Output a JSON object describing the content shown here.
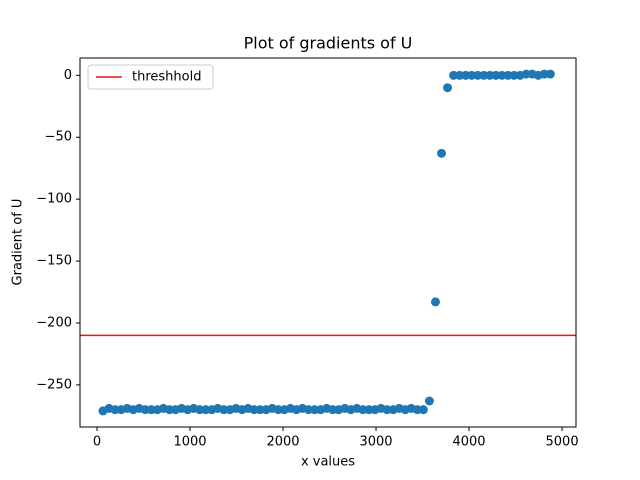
{
  "chart_data": {
    "type": "scatter",
    "title": "Plot of gradients of U",
    "x_label": "x values",
    "y_label": "Gradient of U",
    "x": [
      64,
      129,
      194,
      259,
      324,
      389,
      454,
      519,
      584,
      649,
      714,
      779,
      844,
      909,
      974,
      1039,
      1104,
      1169,
      1234,
      1299,
      1364,
      1429,
      1494,
      1559,
      1624,
      1689,
      1754,
      1819,
      1884,
      1949,
      2014,
      2079,
      2144,
      2209,
      2274,
      2339,
      2404,
      2469,
      2534,
      2599,
      2664,
      2729,
      2794,
      2859,
      2924,
      2989,
      3054,
      3119,
      3184,
      3249,
      3314,
      3379,
      3444,
      3509,
      3574,
      3639,
      3704,
      3769,
      3834,
      3899,
      3964,
      4029,
      4094,
      4159,
      4224,
      4289,
      4354,
      4419,
      4484,
      4549,
      4614,
      4679,
      4744,
      4809,
      4874
    ],
    "series": [
      {
        "color": "#1f77b4",
        "values": [
          -271,
          -269,
          -270,
          -270,
          -269,
          -270,
          -269,
          -270,
          -270,
          -270,
          -269,
          -270,
          -270,
          -269,
          -270,
          -269,
          -270,
          -270,
          -270,
          -269,
          -270,
          -270,
          -269,
          -270,
          -269,
          -270,
          -270,
          -270,
          -269,
          -270,
          -270,
          -269,
          -270,
          -269,
          -270,
          -270,
          -270,
          -269,
          -270,
          -270,
          -269,
          -270,
          -269,
          -270,
          -270,
          -270,
          -269,
          -270,
          -270,
          -269,
          -270,
          -269,
          -270,
          -270,
          -263,
          -183,
          -63,
          -10,
          0,
          0,
          0,
          0,
          0,
          0,
          0,
          0,
          0,
          0,
          0,
          0,
          1,
          1,
          0,
          1,
          1
        ]
      }
    ],
    "hlines": [
      {
        "name": "threshhold",
        "value": -210,
        "color": "#e41a1c"
      }
    ],
    "legend": "upper left",
    "xlim": [
      -183,
      5150
    ],
    "ylim": [
      -284,
      14
    ],
    "xticks": [
      0,
      1000,
      2000,
      3000,
      4000,
      5000
    ],
    "yticks": [
      {
        "value": -250,
        "label": "−250"
      },
      {
        "value": -200,
        "label": "−200"
      },
      {
        "value": -150,
        "label": "−150"
      },
      {
        "value": -100,
        "label": "−100"
      },
      {
        "value": -50,
        "label": "−50"
      },
      0
    ]
  }
}
